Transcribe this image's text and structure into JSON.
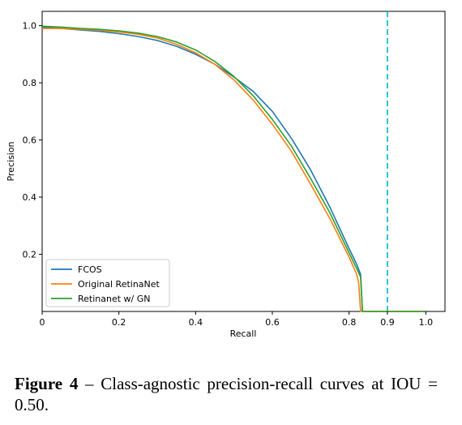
{
  "chart_data": {
    "type": "line",
    "title": "",
    "xlabel": "Recall",
    "ylabel": "Precision",
    "xlim": [
      0,
      1.05
    ],
    "ylim": [
      0,
      1.05
    ],
    "x_ticks": [
      "0",
      "0.2",
      "0.4",
      "0.6",
      "0.8",
      "0.9",
      "1.0"
    ],
    "x_tick_values": [
      0,
      0.2,
      0.4,
      0.6,
      0.8,
      0.9,
      1.0
    ],
    "y_ticks": [
      "0.2",
      "0.4",
      "0.6",
      "0.8",
      "1.0"
    ],
    "y_tick_values": [
      0.2,
      0.4,
      0.6,
      0.8,
      1.0
    ],
    "grid": false,
    "legend_position": "lower-left",
    "vertical_reference_line": {
      "x": 0.9,
      "style": "dashed",
      "color": "#17becf"
    },
    "series": [
      {
        "name": "FCOS",
        "color": "#1f77b4",
        "x": [
          0,
          0.05,
          0.1,
          0.15,
          0.2,
          0.25,
          0.3,
          0.35,
          0.4,
          0.45,
          0.5,
          0.55,
          0.6,
          0.65,
          0.7,
          0.75,
          0.8,
          0.82,
          0.83,
          0.835,
          0.9,
          1.0
        ],
        "y": [
          0.995,
          0.99,
          0.985,
          0.98,
          0.972,
          0.962,
          0.948,
          0.928,
          0.9,
          0.865,
          0.82,
          0.77,
          0.7,
          0.605,
          0.495,
          0.365,
          0.22,
          0.165,
          0.13,
          0.0,
          0.0,
          0.0
        ]
      },
      {
        "name": "Original RetinaNet",
        "color": "#ff7f0e",
        "x": [
          0,
          0.05,
          0.1,
          0.15,
          0.2,
          0.25,
          0.3,
          0.35,
          0.4,
          0.45,
          0.5,
          0.55,
          0.6,
          0.65,
          0.7,
          0.75,
          0.8,
          0.82,
          0.825,
          0.83,
          0.9,
          1.0
        ],
        "y": [
          0.99,
          0.99,
          0.987,
          0.984,
          0.978,
          0.97,
          0.957,
          0.935,
          0.905,
          0.865,
          0.81,
          0.74,
          0.655,
          0.56,
          0.445,
          0.325,
          0.19,
          0.13,
          0.1,
          0.0,
          0.0,
          0.0
        ]
      },
      {
        "name": "Retinanet w/ GN",
        "color": "#2ca02c",
        "x": [
          0,
          0.05,
          0.1,
          0.15,
          0.2,
          0.25,
          0.3,
          0.35,
          0.4,
          0.45,
          0.5,
          0.55,
          0.6,
          0.65,
          0.7,
          0.75,
          0.8,
          0.82,
          0.83,
          0.835,
          0.9,
          1.0
        ],
        "y": [
          0.998,
          0.995,
          0.99,
          0.987,
          0.982,
          0.974,
          0.962,
          0.943,
          0.915,
          0.875,
          0.822,
          0.755,
          0.672,
          0.578,
          0.465,
          0.345,
          0.205,
          0.15,
          0.12,
          0.0,
          0.0,
          0.0
        ]
      }
    ]
  },
  "caption": {
    "label": "Figure 4",
    "text": "– Class-agnostic precision-recall curves at IOU = 0.50."
  }
}
